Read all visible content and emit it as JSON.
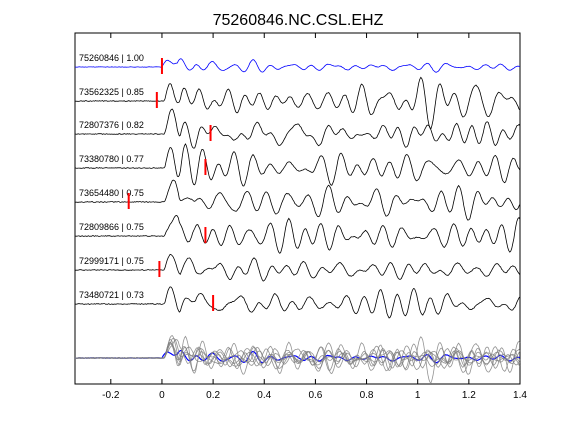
{
  "chart_data": {
    "type": "line",
    "title": "75260846.NC.CSL.EHZ",
    "xlabel": "",
    "ylabel": "",
    "xlim": [
      -0.34,
      1.4
    ],
    "xticks": [
      -0.2,
      0,
      0.2,
      0.4,
      0.6,
      0.8,
      1,
      1.2,
      1.4
    ],
    "xtick_labels": [
      "-0.2",
      "0",
      "0.2",
      "0.4",
      "0.6",
      "0.8",
      "1",
      "1.2",
      "1.4"
    ],
    "yticks": [],
    "grid": false,
    "legend": "none",
    "colors": {
      "reference": "#0000ff",
      "trace": "#000000",
      "overlay": "#808080",
      "pick": "#ff0000",
      "axes": "#000000"
    },
    "series": [
      {
        "name": "75260846 | 1.00",
        "pick_time": 0.0,
        "reference": true
      },
      {
        "name": "73562325 | 0.85",
        "pick_time": -0.02
      },
      {
        "name": "72807376 | 0.82",
        "pick_time": 0.19
      },
      {
        "name": "73380780 | 0.77",
        "pick_time": 0.17
      },
      {
        "name": "73654480 | 0.75",
        "pick_time": -0.13
      },
      {
        "name": "72809866 | 0.75",
        "pick_time": 0.17
      },
      {
        "name": "72999171 | 0.75",
        "pick_time": -0.01
      },
      {
        "name": "73480721 | 0.73",
        "pick_time": 0.2
      }
    ],
    "stack": {
      "description_visible": false
    }
  }
}
